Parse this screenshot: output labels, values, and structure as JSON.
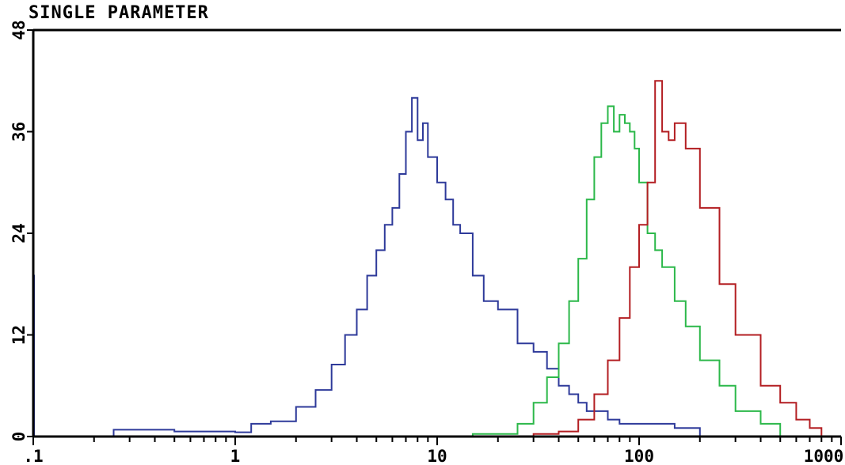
{
  "chart_data": {
    "type": "line",
    "title": "SINGLE PARAMETER",
    "xlabel": "",
    "ylabel": "",
    "x_scale": "log",
    "xlim": [
      0.1,
      1000
    ],
    "ylim": [
      0,
      48
    ],
    "x_tick_labels": [
      ".1",
      "1",
      "10",
      "100",
      "1000"
    ],
    "x_tick_values": [
      0.1,
      1,
      10,
      100,
      1000
    ],
    "y_tick_labels": [
      "0",
      "12",
      "24",
      "36",
      "48"
    ],
    "y_tick_values": [
      0,
      12,
      24,
      36,
      48
    ],
    "grid": false,
    "series": [
      {
        "color": "#2e3a9a",
        "x": [
          0.1,
          0.101,
          0.25,
          0.5,
          0.8,
          1.0,
          1.2,
          1.5,
          2.0,
          2.5,
          3.0,
          3.5,
          4.0,
          4.5,
          5.0,
          5.5,
          6.0,
          6.5,
          7.0,
          7.5,
          8.0,
          8.5,
          9.0,
          10.0,
          11.0,
          12.0,
          13.0,
          15.0,
          17.0,
          20.0,
          25.0,
          30.0,
          35.0,
          40.0,
          45.0,
          50.0,
          55.0,
          60.0,
          70.0,
          80.0,
          100.0,
          150.0,
          200.0
        ],
        "y": [
          19,
          0,
          0.8,
          0.6,
          0.6,
          0.5,
          1.5,
          1.8,
          3.5,
          5.5,
          8.5,
          12,
          15,
          19,
          22,
          25,
          27,
          31,
          36,
          40,
          35,
          37,
          33,
          30,
          28,
          25,
          24,
          19,
          16,
          15,
          11,
          10,
          8,
          6,
          5,
          4,
          3,
          3,
          2,
          1.5,
          1.5,
          1,
          0.2
        ]
      },
      {
        "color": "#2cb84a",
        "x": [
          15.0,
          20.0,
          25.0,
          30.0,
          35.0,
          40.0,
          45.0,
          50.0,
          55.0,
          60.0,
          65.0,
          70.0,
          75.0,
          80.0,
          85.0,
          90.0,
          95.0,
          100.0,
          110.0,
          120.0,
          130.0,
          150.0,
          170.0,
          200.0,
          250.0,
          300.0,
          400.0,
          500.0
        ],
        "y": [
          0.3,
          0.3,
          1.5,
          4,
          7,
          11,
          16,
          21,
          28,
          33,
          37,
          39,
          36,
          38,
          37,
          36,
          34,
          30,
          24,
          22,
          20,
          16,
          13,
          9,
          6,
          3,
          1.5,
          0.5
        ]
      },
      {
        "color": "#b31e22",
        "x": [
          30.0,
          40.0,
          50.0,
          60.0,
          70.0,
          80.0,
          90.0,
          100.0,
          110.0,
          120.0,
          130.0,
          140.0,
          150.0,
          170.0,
          200.0,
          250.0,
          300.0,
          400.0,
          500.0,
          600.0,
          700.0,
          800.0
        ],
        "y": [
          0.3,
          0.6,
          2,
          5,
          9,
          14,
          20,
          25,
          30,
          42,
          36,
          35,
          37,
          34,
          27,
          18,
          12,
          6,
          4,
          2,
          1,
          0.2
        ]
      }
    ]
  }
}
